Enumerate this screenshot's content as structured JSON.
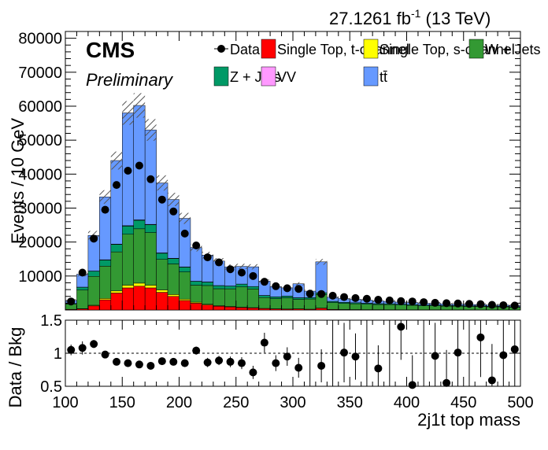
{
  "header": {
    "lumi": "27.1261 fb",
    "lumi_sup": "-1",
    "energy": " (13 TeV)",
    "experiment": "CMS",
    "status": "Preliminary"
  },
  "chart_data": {
    "type": "bar",
    "stacked": true,
    "x_bin_edges_start": 100,
    "bin_width": 10,
    "bin_centers": [
      105,
      115,
      125,
      135,
      145,
      155,
      165,
      175,
      185,
      195,
      205,
      215,
      225,
      235,
      245,
      255,
      265,
      275,
      285,
      295,
      305,
      315,
      325,
      335,
      345,
      355,
      365,
      375,
      385,
      395,
      405,
      415,
      425,
      435,
      445,
      455,
      465,
      475,
      485,
      495
    ],
    "xlabel": "2j1t top mass",
    "ylabel": "Events / 10 GeV",
    "xlim": [
      100,
      500
    ],
    "ylim": [
      0,
      82000
    ],
    "yticks": [
      10000,
      20000,
      30000,
      40000,
      50000,
      60000,
      70000,
      80000
    ],
    "xticks": [
      100,
      150,
      200,
      250,
      300,
      350,
      400,
      450,
      500
    ],
    "legend": {
      "placement": "top",
      "entries": [
        {
          "label": "Data",
          "style": "marker"
        },
        {
          "label": "Single Top, t-channel",
          "color": "#ff0000"
        },
        {
          "label": "Single Top, s-channel",
          "color": "#ffff00"
        },
        {
          "label": "W + Jets",
          "color": "#339933"
        },
        {
          "label": "Z + Jets",
          "color": "#009966"
        },
        {
          "label": "VV",
          "color": "#ff99ff"
        },
        {
          "label": "tt̄",
          "color": "#6699ff"
        }
      ]
    },
    "series": [
      {
        "name": "Single Top, t-channel",
        "color": "#ff0000",
        "values": [
          150,
          300,
          1200,
          3000,
          5000,
          6500,
          7000,
          6500,
          5200,
          4000,
          2800,
          2000,
          1500,
          1100,
          900,
          700,
          600,
          400,
          300,
          250,
          300,
          200,
          500,
          150,
          120,
          100,
          80,
          80,
          60,
          50,
          50,
          40,
          40,
          30,
          30,
          30,
          20,
          20,
          20,
          15
        ]
      },
      {
        "name": "Single Top, s-channel",
        "color": "#ffff00",
        "values": [
          40,
          80,
          200,
          400,
          600,
          800,
          900,
          800,
          700,
          550,
          400,
          300,
          200,
          150,
          120,
          100,
          80,
          60,
          50,
          40,
          40,
          30,
          50,
          30,
          20,
          20,
          15,
          15,
          10,
          10,
          10,
          10,
          8,
          8,
          6,
          6,
          5,
          5,
          5,
          4
        ]
      },
      {
        "name": "W + Jets",
        "color": "#339933",
        "values": [
          1500,
          5500,
          8500,
          9500,
          11500,
          15000,
          16000,
          15500,
          9000,
          9000,
          8000,
          5000,
          5500,
          5000,
          5200,
          6000,
          5500,
          3200,
          3000,
          3300,
          2800,
          3000,
          4000,
          2000,
          1800,
          1700,
          1600,
          1500,
          1500,
          1400,
          1300,
          1200,
          1200,
          1100,
          1100,
          1000,
          1000,
          900,
          900,
          800
        ]
      },
      {
        "name": "Z + Jets",
        "color": "#009966",
        "values": [
          200,
          800,
          1500,
          1800,
          2200,
          2400,
          2500,
          2300,
          1800,
          1600,
          1400,
          1100,
          1000,
          900,
          800,
          800,
          700,
          600,
          500,
          500,
          450,
          400,
          500,
          350,
          300,
          300,
          280,
          260,
          250,
          240,
          220,
          200,
          200,
          190,
          180,
          170,
          160,
          150,
          150,
          140
        ]
      },
      {
        "name": "VV",
        "color": "#ff99ff",
        "values": [
          20,
          40,
          60,
          80,
          100,
          120,
          120,
          110,
          100,
          80,
          70,
          60,
          50,
          40,
          40,
          30,
          30,
          25,
          20,
          20,
          20,
          15,
          20,
          15,
          10,
          10,
          10,
          10,
          8,
          8,
          8,
          6,
          6,
          6,
          5,
          5,
          5,
          4,
          4,
          4
        ]
      },
      {
        "name": "tt̄",
        "color": "#6699ff",
        "values": [
          900,
          3800,
          10500,
          18500,
          24600,
          33200,
          33700,
          27800,
          20600,
          17300,
          14300,
          9900,
          7900,
          7200,
          5600,
          5200,
          5800,
          4200,
          3000,
          2400,
          4100,
          1900,
          9100,
          1200,
          1100,
          1000,
          900,
          800,
          700,
          600,
          600,
          500,
          500,
          450,
          400,
          400,
          400,
          350,
          350,
          300
        ]
      }
    ],
    "data_points": [
      2500,
      11000,
      21000,
      29500,
      36800,
      41000,
      42500,
      38500,
      32500,
      29000,
      22500,
      19000,
      15500,
      14000,
      12000,
      11000,
      10000,
      8300,
      7000,
      6400,
      6200,
      4800,
      4700,
      4200,
      3800,
      3500,
      3300,
      3000,
      2800,
      2600,
      2500,
      2300,
      2100,
      2000,
      1900,
      1800,
      1700,
      1500,
      1400,
      1300
    ],
    "ratio_panel": {
      "ylabel": "Data / Bkg",
      "ylim": [
        0.5,
        1.5
      ],
      "yticks": [
        0.5,
        1,
        1.5
      ],
      "values": [
        1.05,
        1.08,
        1.14,
        0.98,
        0.87,
        0.85,
        0.83,
        0.81,
        0.88,
        0.87,
        0.85,
        1.04,
        0.86,
        0.89,
        0.87,
        0.85,
        0.71,
        1.16,
        0.85,
        0.95,
        0.78,
        null,
        0.81,
        null,
        1.01,
        0.95,
        null,
        0.77,
        null,
        1.4,
        0.52,
        null,
        0.96,
        0.55,
        1.01,
        null,
        1.24,
        0.59,
        0.97,
        1.06
      ],
      "errors": [
        0.08,
        0.1,
        0.06,
        0.05,
        0.04,
        0.03,
        0.03,
        0.03,
        0.04,
        0.04,
        0.05,
        0.06,
        0.07,
        0.07,
        0.08,
        0.09,
        0.1,
        0.15,
        0.12,
        0.14,
        0.15,
        null,
        0.25,
        null,
        0.45,
        0.35,
        null,
        0.35,
        null,
        0.5,
        0.45,
        null,
        0.5,
        0.5,
        0.55,
        null,
        0.6,
        0.55,
        0.6,
        0.6
      ]
    }
  }
}
